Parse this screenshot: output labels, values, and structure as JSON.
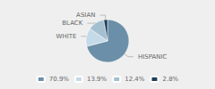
{
  "chart_data": {
    "type": "pie",
    "categories": [
      "HISPANIC",
      "WHITE",
      "BLACK",
      "ASIAN"
    ],
    "values": [
      70.9,
      13.9,
      12.4,
      2.8
    ],
    "value_labels": [
      "70.9%",
      "13.9%",
      "12.4%",
      "2.8%"
    ],
    "colors": [
      "#6b8fa8",
      "#c5dae8",
      "#a4bfcf",
      "#1e3f5a"
    ],
    "legend": "bottom"
  }
}
